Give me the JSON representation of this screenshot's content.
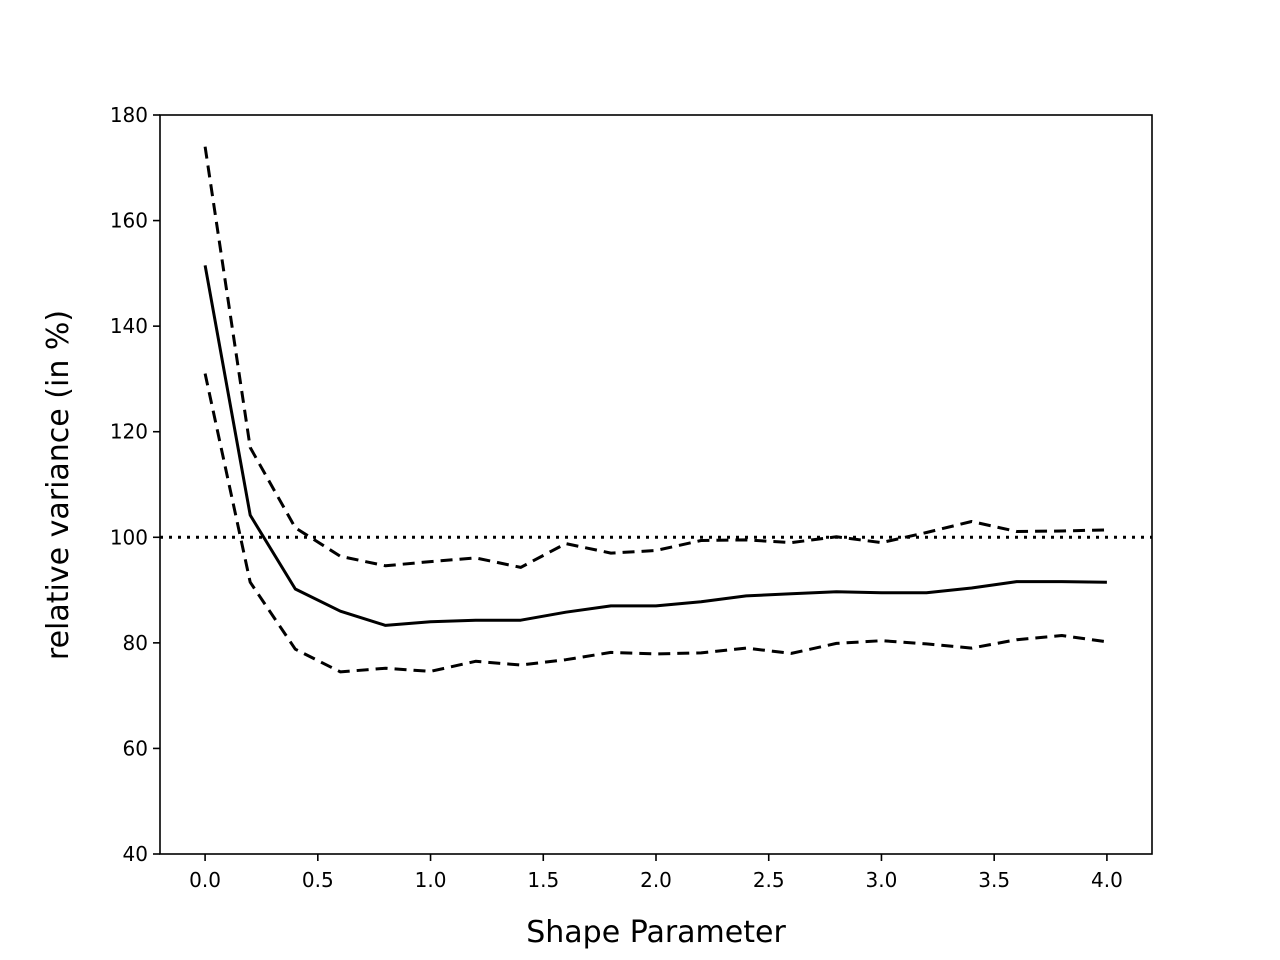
{
  "chart_data": {
    "type": "line",
    "title": "",
    "xlabel": "Shape Parameter",
    "ylabel": "relative variance (in %)",
    "xlim": [
      -0.2,
      4.2
    ],
    "ylim": [
      40,
      180
    ],
    "grid": false,
    "legend": "none",
    "xticks": [
      0.0,
      0.5,
      1.0,
      1.5,
      2.0,
      2.5,
      3.0,
      3.5,
      4.0
    ],
    "xtick_labels": [
      "0.0",
      "0.5",
      "1.0",
      "1.5",
      "2.0",
      "2.5",
      "3.0",
      "3.5",
      "4.0"
    ],
    "yticks": [
      40,
      60,
      80,
      100,
      120,
      140,
      160,
      180
    ],
    "ytick_labels": [
      "40",
      "60",
      "80",
      "100",
      "120",
      "140",
      "160",
      "180"
    ],
    "x": [
      0.0,
      0.2,
      0.4,
      0.6,
      0.8,
      1.0,
      1.2,
      1.4,
      1.6,
      1.8,
      2.0,
      2.2,
      2.4,
      2.6,
      2.8,
      3.0,
      3.2,
      3.4,
      3.6,
      3.8,
      4.0
    ],
    "series": [
      {
        "style": "solid",
        "color": "#000000",
        "values": [
          151.5,
          104.2,
          90.2,
          86.0,
          83.3,
          84.0,
          84.3,
          84.3,
          85.8,
          87.0,
          87.0,
          87.8,
          88.9,
          89.3,
          89.7,
          89.5,
          89.5,
          90.4,
          91.6,
          91.6,
          91.5
        ]
      },
      {
        "style": "dashed",
        "color": "#000000",
        "values": [
          174.0,
          117.0,
          101.8,
          96.4,
          94.6,
          95.4,
          96.1,
          94.3,
          98.8,
          97.0,
          97.5,
          99.4,
          99.5,
          99.0,
          100.1,
          99.0,
          100.9,
          103.0,
          101.1,
          101.2,
          101.4
        ]
      },
      {
        "style": "dashed",
        "color": "#000000",
        "values": [
          131.0,
          91.5,
          78.8,
          74.5,
          75.2,
          74.6,
          76.5,
          75.8,
          76.8,
          78.2,
          77.9,
          78.1,
          79.0,
          78.0,
          79.9,
          80.4,
          79.8,
          79.0,
          80.6,
          81.4,
          80.2
        ]
      }
    ],
    "reference_line": {
      "y": 100,
      "style": "dotted",
      "color": "#000000"
    }
  }
}
